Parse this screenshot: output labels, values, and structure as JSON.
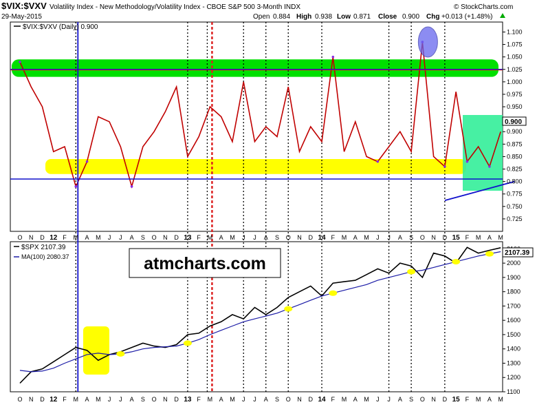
{
  "header": {
    "symbol": "$VIX:$VXV",
    "description": "Volatility Index - New Methodology/Volatility Index - CBOE S&P 500 3-Month  INDX",
    "brand": "© StockCharts.com",
    "date": "29-May-2015",
    "open_label": "Open",
    "open_value": "0.884",
    "high_label": "High",
    "high_value": "0.938",
    "low_label": "Low",
    "low_value": "0.871",
    "close_label": "Close",
    "close_value": "0.900",
    "chg_label": "Chg",
    "chg_value": "+0.013 (+1.48%)"
  },
  "watermark": "atmcharts.com",
  "colors": {
    "ratio_line": "#c00000",
    "ratio_low": "#8a2be2",
    "spx_line": "#000000",
    "ma_line": "#1a1aa6",
    "green_zone": "#00e000",
    "yellow_zone": "#ffff00",
    "teal_box": "#33ee99",
    "blue_line": "#1010cc",
    "red_line": "#dd2222",
    "purple_ellipse": "#6666ee",
    "up_arrow": "#00aa00"
  },
  "x_axis": {
    "months": [
      "O",
      "N",
      "D",
      "12",
      "F",
      "M",
      "A",
      "M",
      "J",
      "J",
      "A",
      "S",
      "O",
      "N",
      "D",
      "13",
      "F",
      "M",
      "A",
      "M",
      "J",
      "J",
      "A",
      "S",
      "O",
      "N",
      "D",
      "14",
      "F",
      "M",
      "A",
      "M",
      "J",
      "J",
      "A",
      "S",
      "O",
      "N",
      "D",
      "15",
      "F",
      "M",
      "A",
      "M"
    ]
  },
  "chart_data": [
    {
      "type": "line",
      "title": "$VIX:$VXV (Daily) 0.900",
      "x_range": [
        "2011-10",
        "2015-05"
      ],
      "ylim": [
        0.7,
        1.12
      ],
      "y_ticks": [
        "1.100",
        "1.075",
        "1.050",
        "1.025",
        "1.000",
        "0.975",
        "0.950",
        "0.925",
        "0.900",
        "0.875",
        "0.850",
        "0.825",
        "0.800",
        "0.775",
        "0.750",
        "0.725"
      ],
      "last_value_label": "0.900",
      "x": [
        "2011-10",
        "2011-11",
        "2011-12",
        "2012-01",
        "2012-02",
        "2012-03",
        "2012-04",
        "2012-05",
        "2012-06",
        "2012-07",
        "2012-08",
        "2012-09",
        "2012-10",
        "2012-11",
        "2012-12",
        "2013-01",
        "2013-02",
        "2013-03",
        "2013-04",
        "2013-05",
        "2013-06",
        "2013-07",
        "2013-08",
        "2013-09",
        "2013-10",
        "2013-11",
        "2013-12",
        "2014-01",
        "2014-02",
        "2014-03",
        "2014-04",
        "2014-05",
        "2014-06",
        "2014-07",
        "2014-08",
        "2014-09",
        "2014-10",
        "2014-11",
        "2014-12",
        "2015-01",
        "2015-02",
        "2015-03",
        "2015-04",
        "2015-05"
      ],
      "values": [
        1.04,
        0.99,
        0.95,
        0.86,
        0.87,
        0.79,
        0.84,
        0.93,
        0.92,
        0.87,
        0.79,
        0.87,
        0.9,
        0.94,
        0.99,
        0.85,
        0.89,
        0.95,
        0.93,
        0.88,
        1.0,
        0.88,
        0.91,
        0.89,
        0.99,
        0.86,
        0.91,
        0.88,
        1.05,
        0.86,
        0.92,
        0.85,
        0.84,
        0.87,
        0.9,
        0.86,
        1.08,
        0.85,
        0.83,
        0.98,
        0.84,
        0.87,
        0.83,
        0.9
      ],
      "horizontal_lines": [
        1.025,
        0.805
      ],
      "zones": [
        {
          "from": 1.01,
          "to": 1.045
        },
        {
          "from": 0.815,
          "to": 0.845
        }
      ]
    },
    {
      "type": "line",
      "title": "$SPX 2107.39",
      "ylim": [
        1100,
        2150
      ],
      "y_ticks": [
        "2100",
        "2000",
        "1900",
        "1800",
        "1700",
        "1600",
        "1500",
        "1400",
        "1300",
        "1200",
        "1100"
      ],
      "last_value_label": "2107.39",
      "series": [
        {
          "name": "$SPX 2107.39",
          "x": [
            "2011-10",
            "2011-11",
            "2011-12",
            "2012-01",
            "2012-02",
            "2012-03",
            "2012-04",
            "2012-05",
            "2012-06",
            "2012-07",
            "2012-08",
            "2012-09",
            "2012-10",
            "2012-11",
            "2012-12",
            "2013-01",
            "2013-02",
            "2013-03",
            "2013-04",
            "2013-05",
            "2013-06",
            "2013-07",
            "2013-08",
            "2013-09",
            "2013-10",
            "2013-11",
            "2013-12",
            "2014-01",
            "2014-02",
            "2014-03",
            "2014-04",
            "2014-05",
            "2014-06",
            "2014-07",
            "2014-08",
            "2014-09",
            "2014-10",
            "2014-11",
            "2014-12",
            "2015-01",
            "2015-02",
            "2015-03",
            "2015-04",
            "2015-05"
          ],
          "values": [
            1160,
            1240,
            1260,
            1310,
            1360,
            1410,
            1390,
            1320,
            1360,
            1380,
            1410,
            1440,
            1420,
            1410,
            1430,
            1500,
            1510,
            1560,
            1590,
            1640,
            1610,
            1690,
            1640,
            1690,
            1760,
            1800,
            1840,
            1770,
            1860,
            1870,
            1880,
            1920,
            1960,
            1930,
            2000,
            1980,
            1900,
            2070,
            2050,
            2000,
            2110,
            2070,
            2090,
            2107.39
          ]
        },
        {
          "name": "MA(100) 2080.37",
          "x": [
            "2011-10",
            "2011-11",
            "2011-12",
            "2012-01",
            "2012-02",
            "2012-03",
            "2012-04",
            "2012-05",
            "2012-06",
            "2012-07",
            "2012-08",
            "2012-09",
            "2012-10",
            "2012-11",
            "2012-12",
            "2013-01",
            "2013-02",
            "2013-03",
            "2013-04",
            "2013-05",
            "2013-06",
            "2013-07",
            "2013-08",
            "2013-09",
            "2013-10",
            "2013-11",
            "2013-12",
            "2014-01",
            "2014-02",
            "2014-03",
            "2014-04",
            "2014-05",
            "2014-06",
            "2014-07",
            "2014-08",
            "2014-09",
            "2014-10",
            "2014-11",
            "2014-12",
            "2015-01",
            "2015-02",
            "2015-03",
            "2015-04",
            "2015-05"
          ],
          "values": [
            1250,
            1240,
            1245,
            1265,
            1300,
            1330,
            1360,
            1370,
            1360,
            1365,
            1380,
            1400,
            1410,
            1415,
            1420,
            1440,
            1465,
            1500,
            1530,
            1560,
            1590,
            1610,
            1630,
            1650,
            1680,
            1710,
            1740,
            1770,
            1790,
            1810,
            1830,
            1850,
            1880,
            1900,
            1920,
            1940,
            1950,
            1970,
            1990,
            2010,
            2030,
            2050,
            2065,
            2080.37
          ]
        }
      ]
    }
  ]
}
